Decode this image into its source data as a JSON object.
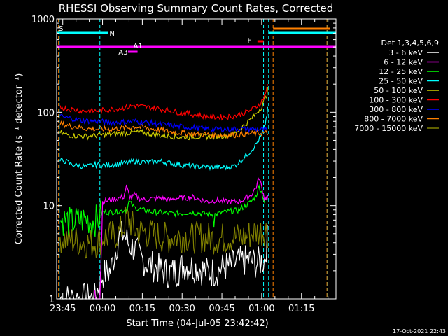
{
  "chart_data": {
    "type": "line",
    "title": "RHESSI Observing Summary Count Rates, Corrected",
    "xlabel": "Start Time (04-Jul-05 23:42:42)",
    "ylabel": "Corrected Count Rate (s⁻¹ detector⁻¹)",
    "y_scale": "log",
    "ylim": [
      1,
      1000
    ],
    "y_ticks": [
      1,
      10,
      100,
      1000
    ],
    "x_tick_labels": [
      "23:45",
      "00:00",
      "00:15",
      "00:30",
      "00:45",
      "01:00",
      "01:15"
    ],
    "x_ticks_minutes": [
      -15,
      0,
      15,
      30,
      45,
      60,
      75
    ],
    "x_range_minutes": [
      -17.3,
      88
    ],
    "grid": false,
    "legend_position": "right",
    "legend_title": "Det 1,3,4,5,6,9",
    "timestamp": "17-Oct-2021 22:43",
    "series": [
      {
        "name": "3 - 6 keV",
        "color": "#ffffff",
        "x": [
          -16,
          -14,
          -12,
          -10,
          -8,
          -6,
          -3,
          0,
          3,
          6,
          8,
          10,
          12,
          14,
          16,
          18,
          20,
          22,
          25,
          28,
          31,
          34,
          37,
          40,
          43,
          46,
          49,
          52,
          55,
          58,
          61,
          62.5
        ],
        "y": [
          1.0,
          1.0,
          1.0,
          1.0,
          1.0,
          1.0,
          1.0,
          1.8,
          2.0,
          4.5,
          5.0,
          3.8,
          3.5,
          2.8,
          2.5,
          2.3,
          2.2,
          2.0,
          1.9,
          2.0,
          2.3,
          2.2,
          2.1,
          1.9,
          2.0,
          2.2,
          2.3,
          2.5,
          2.6,
          2.4,
          2.6,
          5
        ]
      },
      {
        "name": "6 - 12 keV",
        "color": "#ff00ff",
        "x": [
          -3,
          -1,
          0,
          3,
          6,
          8,
          9,
          10,
          11,
          12,
          14,
          16,
          18,
          20,
          22,
          25,
          28,
          31,
          34,
          37,
          40,
          43,
          46,
          49,
          52,
          54,
          56,
          58,
          59,
          60,
          61,
          62,
          62.5
        ],
        "y": [
          1.0,
          1.0,
          11,
          11.5,
          12,
          12.5,
          16,
          13,
          12,
          13,
          12,
          11.5,
          11.8,
          12,
          12,
          11.5,
          12,
          12,
          12.3,
          11.5,
          11,
          11.5,
          11,
          11,
          11.2,
          12,
          13,
          16,
          20,
          16,
          12,
          12,
          13
        ]
      },
      {
        "name": "12 - 25 keV",
        "color": "#00ff00",
        "x": [
          -16,
          -14,
          -12,
          -10,
          -8,
          -6,
          -4,
          -2,
          0,
          3,
          6,
          9,
          10,
          12,
          15,
          18,
          21,
          24,
          27,
          30,
          33,
          36,
          39,
          42,
          45,
          48,
          51,
          54,
          56,
          58,
          59,
          60,
          61,
          62.5
        ],
        "y": [
          7,
          7,
          6.5,
          6.8,
          7,
          7.2,
          6.8,
          7,
          8.5,
          8.5,
          8.7,
          9,
          11,
          9.5,
          9,
          8.6,
          8.5,
          8.3,
          8.2,
          8.3,
          8.5,
          8.3,
          8.2,
          8.0,
          8.4,
          8.7,
          8.9,
          10,
          11,
          13,
          16,
          14,
          11,
          12
        ]
      },
      {
        "name": "25 - 50 keV",
        "color": "#00ffff",
        "x": [
          -16,
          -14,
          -12,
          -10,
          -8,
          -6,
          -4,
          -2,
          0,
          3,
          6,
          9,
          12,
          15,
          18,
          21,
          24,
          27,
          30,
          33,
          36,
          39,
          42,
          45,
          48,
          50,
          52,
          54,
          56,
          58,
          60,
          61,
          62,
          62.5
        ],
        "y": [
          30,
          30,
          28,
          27,
          26.5,
          26,
          27,
          27.5,
          27,
          27.5,
          28,
          28.5,
          30,
          29.5,
          29,
          30,
          29,
          28,
          27,
          26.5,
          26,
          26,
          25.5,
          25.5,
          26,
          27,
          30,
          34,
          39,
          46,
          57,
          68,
          95,
          120
        ]
      },
      {
        "name": "50 - 100 keV",
        "color": "#cccc00",
        "x": [
          -16,
          -14,
          -12,
          -10,
          -8,
          -6,
          -4,
          -2,
          0,
          3,
          6,
          9,
          12,
          15,
          18,
          21,
          24,
          27,
          30,
          33,
          36,
          39,
          42,
          45,
          48,
          50,
          52,
          54,
          56,
          58,
          60,
          61,
          62,
          62.5
        ],
        "y": [
          60,
          58,
          57,
          56,
          56,
          55,
          56,
          57,
          57,
          58,
          59,
          60,
          61,
          60.5,
          59,
          57,
          56,
          55,
          54,
          54,
          55,
          55,
          55.5,
          56,
          57,
          60,
          67,
          75,
          85,
          98,
          115,
          135,
          160,
          190
        ]
      },
      {
        "name": "100 - 300 keV",
        "color": "#ff0000",
        "x": [
          -16,
          -14,
          -12,
          -10,
          -8,
          -6,
          -4,
          -2,
          0,
          3,
          6,
          9,
          12,
          15,
          18,
          21,
          24,
          27,
          30,
          33,
          36,
          39,
          42,
          45,
          48,
          50,
          52,
          54,
          56,
          58,
          60,
          61,
          62,
          62.5
        ],
        "y": [
          115,
          110,
          108,
          106,
          104,
          103,
          103,
          104,
          105,
          107,
          110,
          113,
          118,
          115,
          112,
          110,
          106,
          102,
          98,
          96,
          93,
          90,
          89,
          89,
          90,
          92,
          95,
          100,
          106,
          115,
          130,
          150,
          180,
          210
        ]
      },
      {
        "name": "300 - 800 keV",
        "color": "#0000ff",
        "x": [
          -16,
          -14,
          -12,
          -10,
          -8,
          -6,
          -4,
          -2,
          0,
          3,
          6,
          9,
          12,
          15,
          18,
          21,
          24,
          27,
          30,
          33,
          36,
          39,
          42,
          45,
          48,
          50,
          52,
          54,
          56,
          58,
          60,
          61,
          62,
          62.5
        ],
        "y": [
          90,
          88,
          86,
          84,
          82,
          81,
          80,
          80,
          79,
          78,
          78,
          79,
          80,
          79,
          77,
          75,
          73,
          72,
          70,
          69,
          68,
          67,
          66,
          66,
          66,
          67,
          67,
          66,
          66,
          66,
          66,
          65,
          65,
          65
        ]
      },
      {
        "name": "800 - 7000 keV",
        "color": "#ff8000",
        "x": [
          -16,
          -14,
          -12,
          -10,
          -8,
          -6,
          -4,
          -2,
          0,
          3,
          6,
          9,
          12,
          15,
          18,
          21,
          24,
          27,
          30,
          33,
          36,
          39,
          42,
          45,
          48,
          50,
          52,
          54,
          56,
          58,
          60,
          61,
          62,
          62.5
        ],
        "y": [
          75,
          73,
          71,
          70,
          68,
          67,
          66,
          66,
          66,
          66,
          67,
          68,
          70,
          69,
          67,
          65,
          63,
          61,
          60,
          59,
          58,
          58,
          57,
          57,
          57,
          57,
          58,
          59,
          59,
          59,
          60,
          60,
          60,
          60
        ]
      },
      {
        "name": "7000 - 15000 keV",
        "color": "#808000",
        "x": [
          -16,
          -14,
          -12,
          -10,
          -8,
          -6,
          -4,
          -2,
          0,
          3,
          6,
          8,
          9,
          10,
          11,
          12,
          14,
          16,
          18,
          20,
          22,
          25,
          28,
          31,
          34,
          37,
          40,
          43,
          46,
          49,
          52,
          54,
          56,
          58,
          60,
          61,
          62,
          62.5
        ],
        "y": [
          4.5,
          4.4,
          4.3,
          4.2,
          4.1,
          4.0,
          4.0,
          4.0,
          4.6,
          4.7,
          5,
          6,
          7.5,
          7,
          6.2,
          5.5,
          5.3,
          5.2,
          5,
          4.8,
          4.6,
          4.5,
          4.6,
          4.7,
          4.5,
          4.6,
          4.5,
          4.4,
          4.5,
          4.6,
          4.6,
          4.7,
          5,
          5.2,
          5.3,
          5.5,
          5.3,
          5
        ]
      }
    ],
    "annotations": [
      {
        "label": "S",
        "color": "#ff8000"
      },
      {
        "label": "N",
        "color": "#00ffff"
      },
      {
        "label": "A1",
        "color": "#ff00ff"
      },
      {
        "label": "A3",
        "color": "#ff00ff"
      },
      {
        "label": "F",
        "color": "#ff0000"
      }
    ]
  }
}
